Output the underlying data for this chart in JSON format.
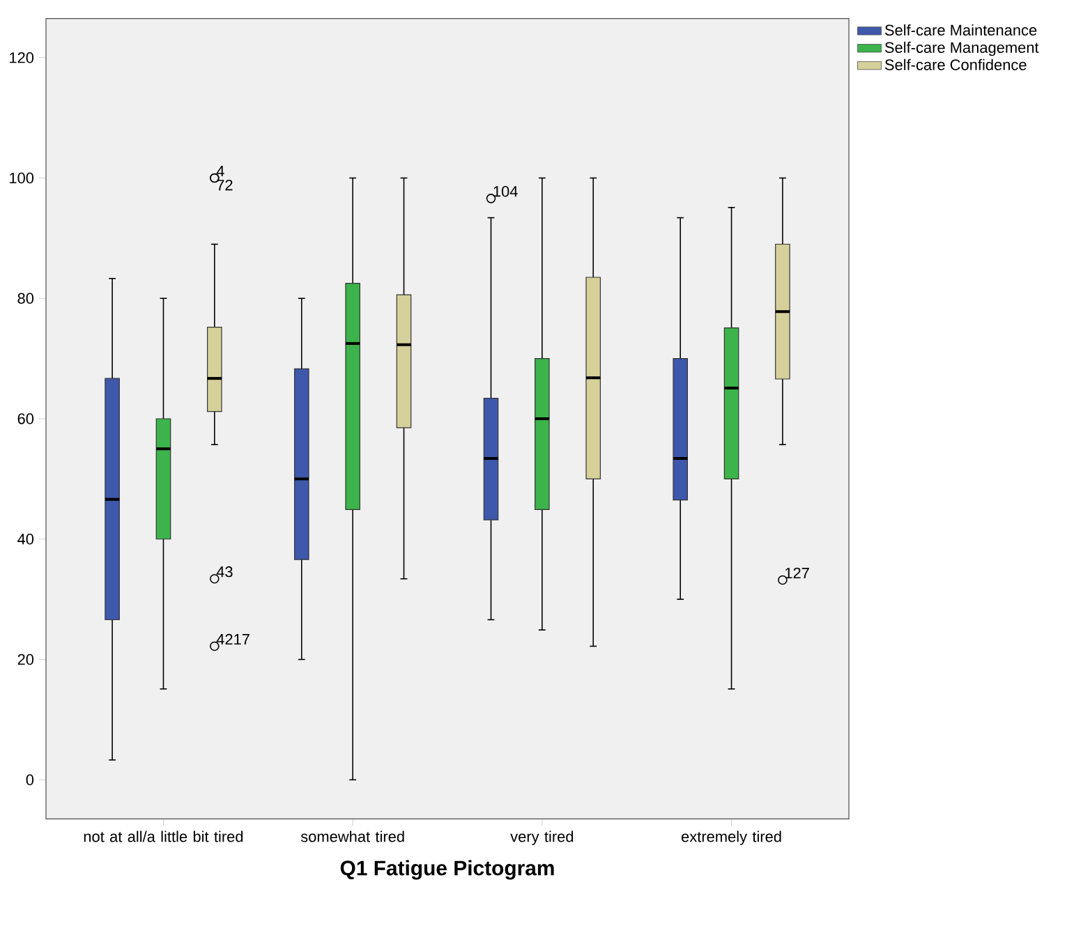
{
  "chart_data": {
    "type": "box",
    "xlabel": "Q1 Fatigue Pictogram",
    "categories": [
      "not at all/a little bit tired",
      "somewhat tired",
      "very tired",
      "extremely tired"
    ],
    "series": [
      {
        "name": "Self-care Maintenance",
        "color": "#3e58ac",
        "boxes": [
          {
            "low": 3.3,
            "q1": 26.6,
            "median": 46.6,
            "q3": 66.7,
            "high": 83.3
          },
          {
            "low": 20,
            "q1": 36.6,
            "median": 50,
            "q3": 68.3,
            "high": 80
          },
          {
            "low": 26.6,
            "q1": 43.2,
            "median": 53.4,
            "q3": 63.4,
            "high": 93.4,
            "outliers": [
              96.6
            ]
          },
          {
            "low": 30,
            "q1": 46.5,
            "median": 53.4,
            "q3": 70,
            "high": 93.4
          }
        ]
      },
      {
        "name": "Self-care Management",
        "color": "#3cb44b",
        "boxes": [
          {
            "low": 15.1,
            "q1": 40,
            "median": 55,
            "q3": 60,
            "high": 80
          },
          {
            "low": 0,
            "q1": 44.9,
            "median": 72.5,
            "q3": 82.5,
            "high": 100
          },
          {
            "low": 24.9,
            "q1": 44.9,
            "median": 60,
            "q3": 70,
            "high": 100
          },
          {
            "low": 15.1,
            "q1": 50,
            "median": 65.1,
            "q3": 75.1,
            "high": 95.1
          }
        ]
      },
      {
        "name": "Self-care Confidence",
        "color": "#d6d09a",
        "boxes": [
          {
            "low": 55.7,
            "q1": 61.2,
            "median": 66.7,
            "q3": 75.2,
            "high": 89,
            "outliers": [
              100,
              100,
              33.4,
              22.2
            ]
          },
          {
            "low": 33.4,
            "q1": 58.5,
            "median": 72.3,
            "q3": 80.6,
            "high": 100
          },
          {
            "low": 22.2,
            "q1": 50,
            "median": 66.8,
            "q3": 83.5,
            "high": 100
          },
          {
            "low": 55.7,
            "q1": 66.6,
            "median": 77.8,
            "q3": 89,
            "high": 100,
            "outliers": [
              33.2
            ]
          }
        ]
      }
    ],
    "ylim": [
      -6.5,
      126.5
    ],
    "yticks": [
      0,
      20,
      40,
      60,
      80,
      100,
      120
    ],
    "legend": "top right",
    "grid": false,
    "marker": "circle",
    "annotations": [
      "104",
      "4",
      "72",
      "43",
      "4217",
      "127"
    ]
  }
}
